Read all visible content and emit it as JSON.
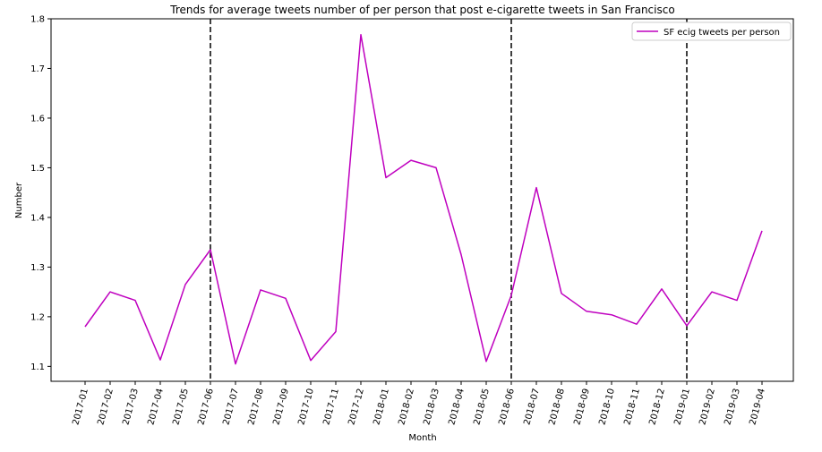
{
  "chart_data": {
    "type": "line",
    "title": "Trends for average tweets number of per person that post e-cigarette tweets in San Francisco",
    "xlabel": "Month",
    "ylabel": "Number",
    "ylim": [
      1.07,
      1.8
    ],
    "yticks": [
      1.1,
      1.2,
      1.3,
      1.4,
      1.5,
      1.6,
      1.7,
      1.8
    ],
    "ytick_labels": [
      "1.1",
      "1.2",
      "1.3",
      "1.4",
      "1.5",
      "1.6",
      "1.7",
      "1.8"
    ],
    "categories": [
      "2017-01",
      "2017-02",
      "2017-03",
      "2017-04",
      "2017-05",
      "2017-06",
      "2017-07",
      "2017-08",
      "2017-09",
      "2017-10",
      "2017-11",
      "2017-12",
      "2018-01",
      "2018-02",
      "2018-03",
      "2018-04",
      "2018-05",
      "2018-06",
      "2018-07",
      "2018-08",
      "2018-09",
      "2018-10",
      "2018-11",
      "2018-12",
      "2019-01",
      "2019-02",
      "2019-03",
      "2019-04"
    ],
    "series": [
      {
        "name": "SF ecig tweets per person",
        "color": "#bf00bf",
        "values": [
          1.18,
          1.25,
          1.233,
          1.113,
          1.265,
          1.335,
          1.105,
          1.254,
          1.237,
          1.112,
          1.17,
          1.768,
          1.48,
          1.515,
          1.5,
          1.325,
          1.11,
          1.243,
          1.46,
          1.247,
          1.211,
          1.204,
          1.185,
          1.256,
          1.182,
          1.25,
          1.233,
          1.373
        ]
      }
    ],
    "vlines": [
      "2017-06",
      "2018-06",
      "2019-01"
    ],
    "legend_position": "top-right",
    "grid": false
  }
}
